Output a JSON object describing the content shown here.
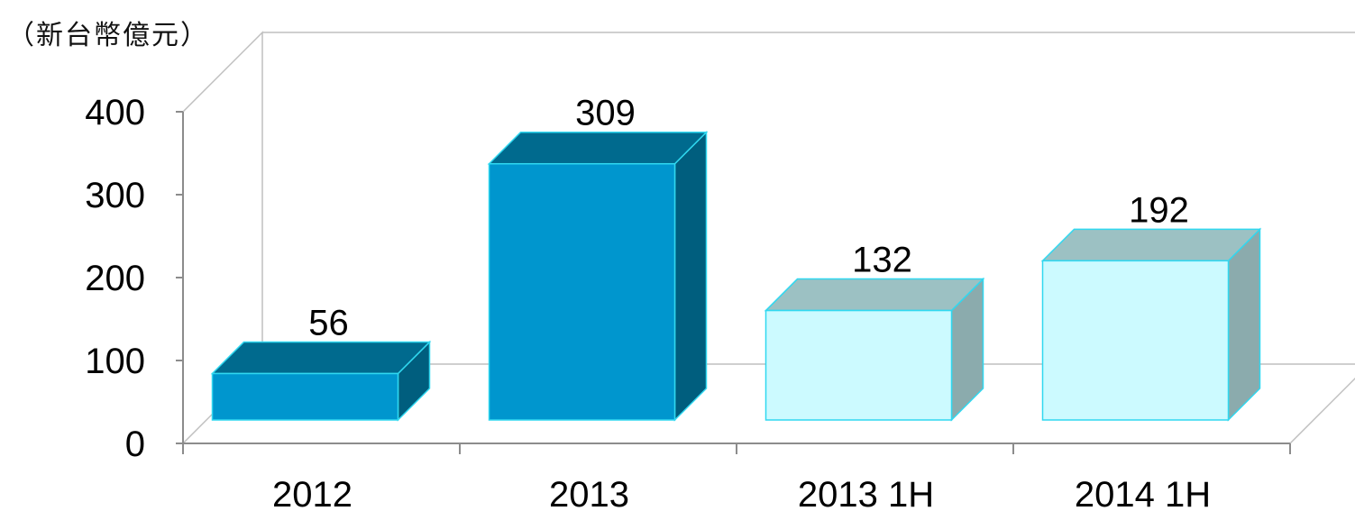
{
  "chart_data": {
    "type": "bar",
    "style": "3d",
    "unit_label": "（新台幣億元）",
    "categories": [
      "2012",
      "2013",
      "2013 1H",
      "2014 1H"
    ],
    "values": [
      56,
      309,
      132,
      192
    ],
    "data_labels": [
      "56",
      "309",
      "132",
      "192"
    ],
    "yticks": [
      "0",
      "100",
      "200",
      "300",
      "400"
    ],
    "ylim": [
      0,
      400
    ],
    "grid": false,
    "legend": "none",
    "colors": {
      "full_year_front": "#0096CE",
      "full_year_top": "#006A8E",
      "full_year_side": "#005E7E",
      "half_year_front": "#CCFAFF",
      "half_year_top": "#9CC1C3",
      "half_year_side": "#8BABAD",
      "bar_edge": "#30D8F0",
      "wall_line": "#BFBFBF",
      "axis_line": "#8C8C8C"
    }
  }
}
